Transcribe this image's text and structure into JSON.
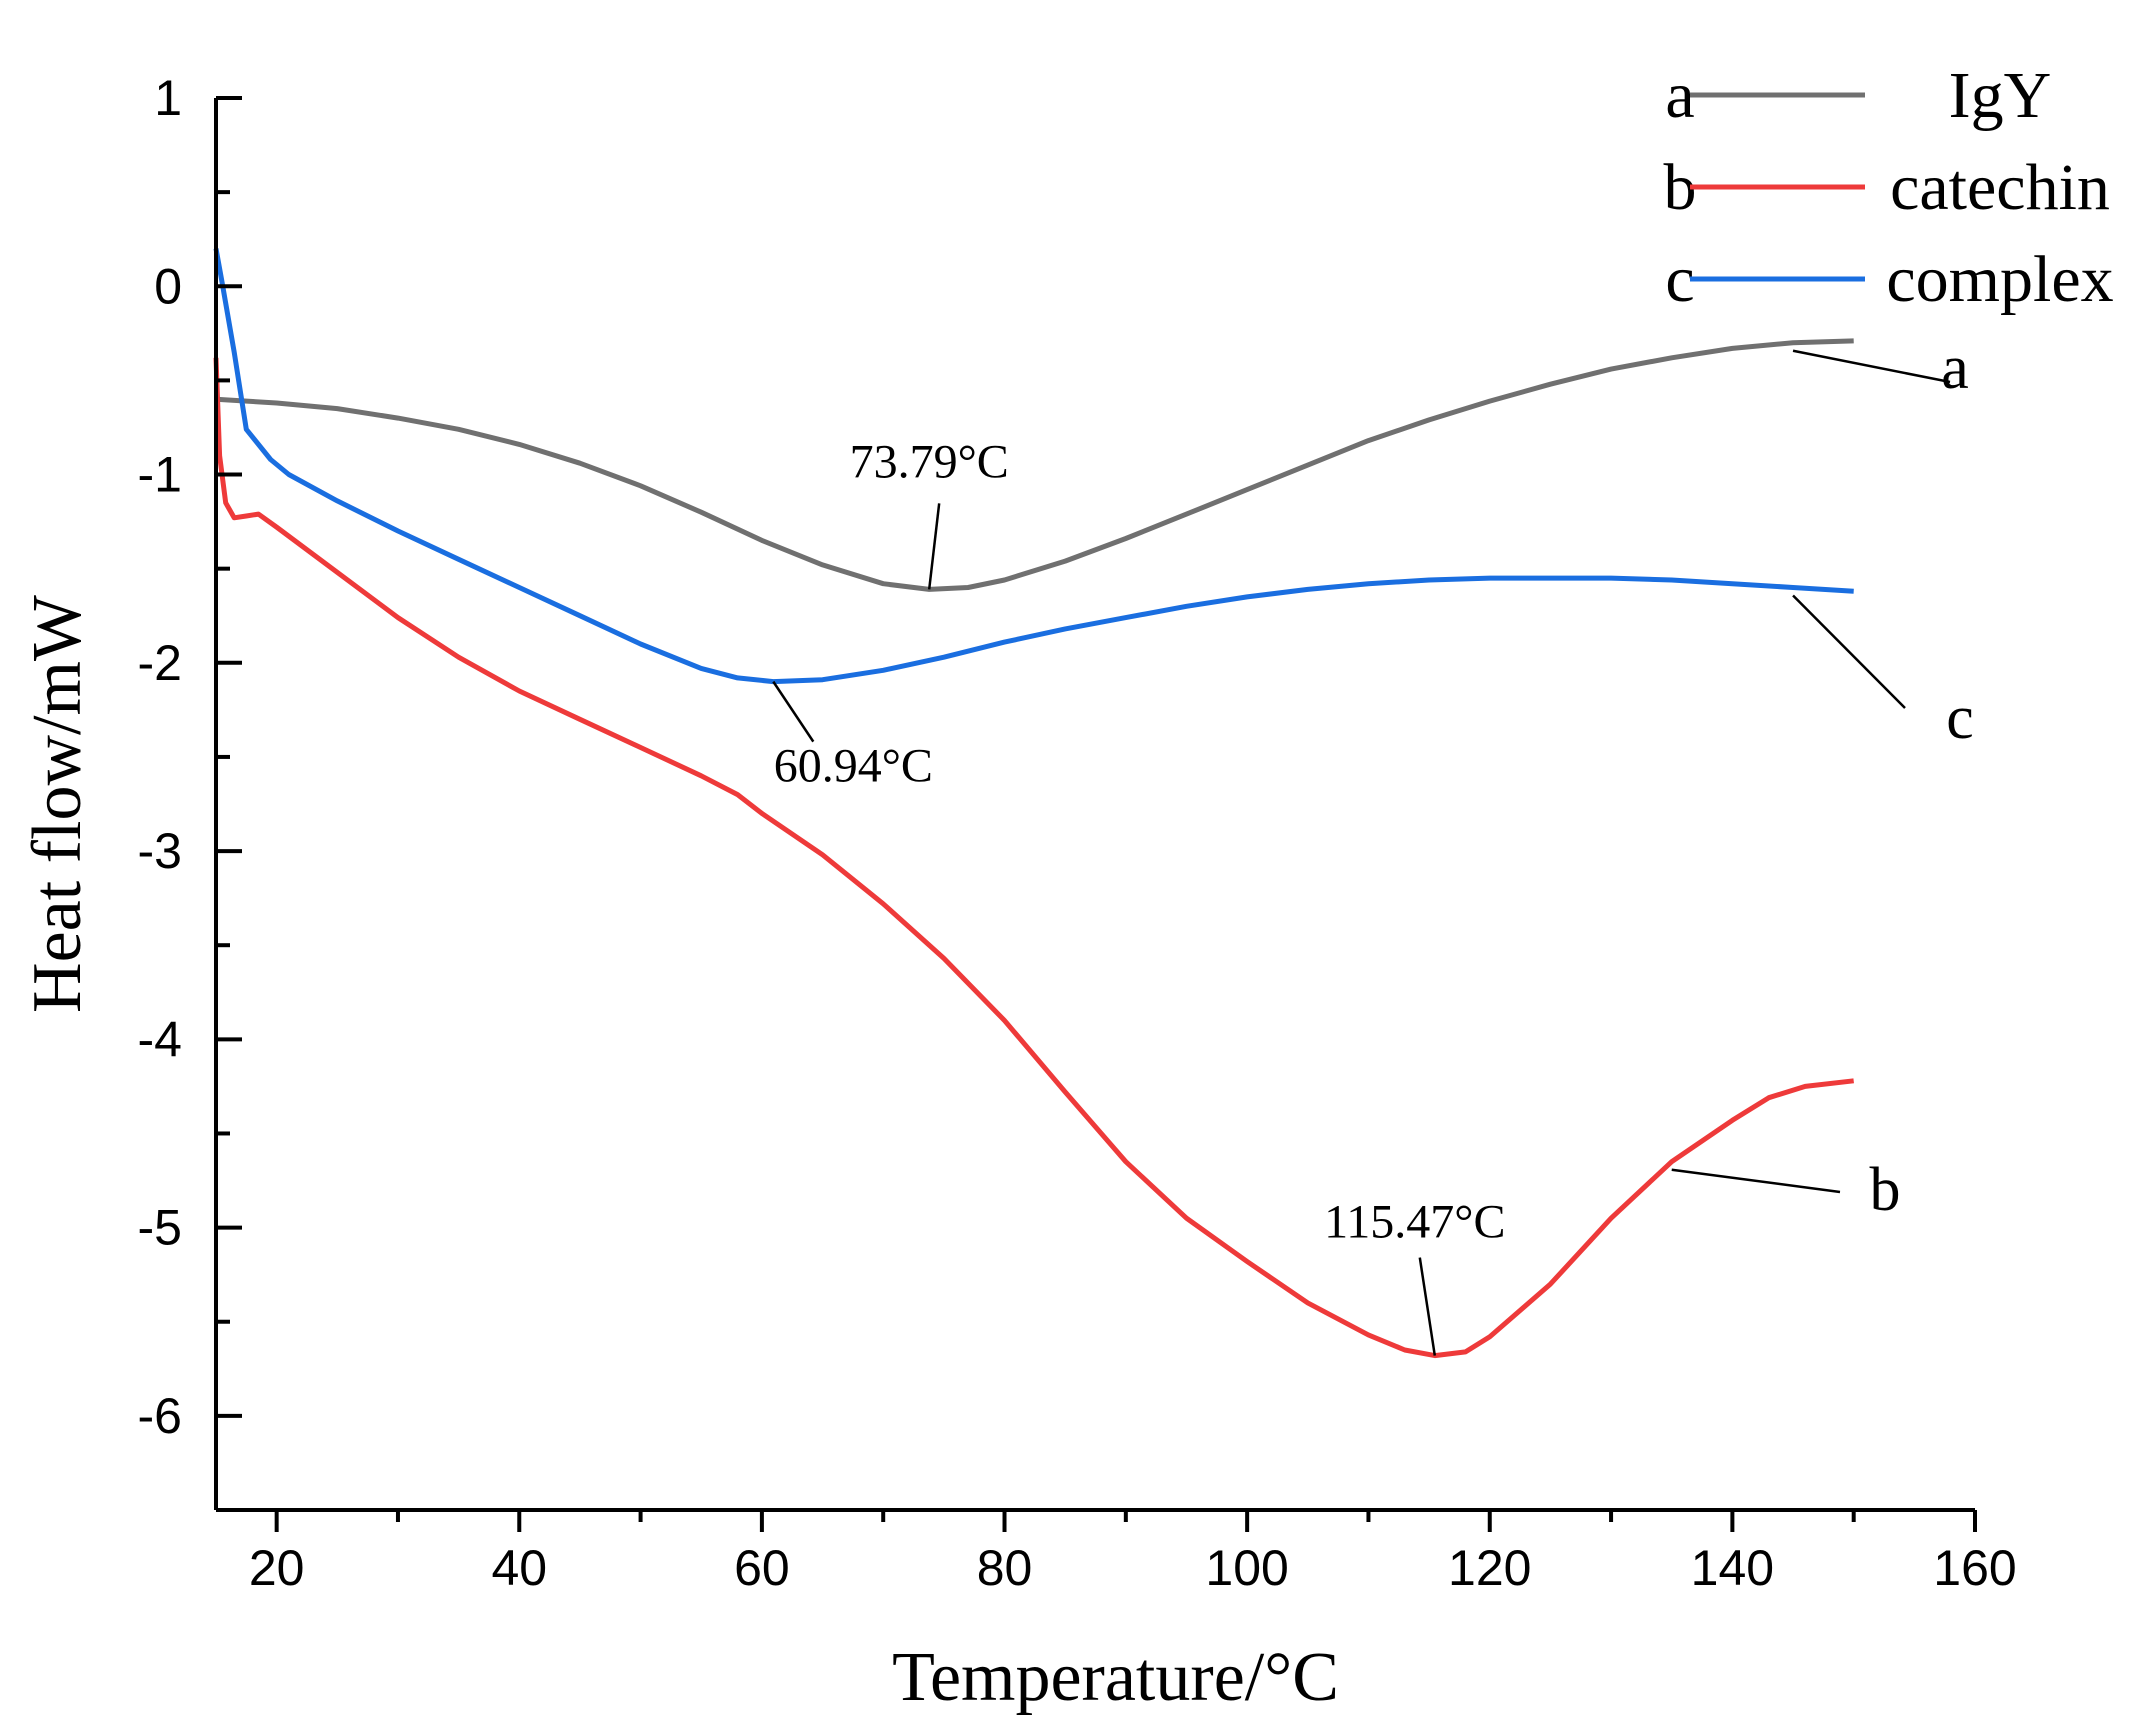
{
  "chart_data": {
    "type": "line",
    "title": "",
    "xlabel": "Temperature/°C",
    "ylabel": "Heat flow/mW",
    "xlim": [
      15,
      160
    ],
    "ylim": [
      -6.5,
      1
    ],
    "x_ticks": [
      20,
      40,
      60,
      80,
      100,
      120,
      140,
      160
    ],
    "y_ticks": [
      1,
      0,
      -1,
      -2,
      -3,
      -4,
      -5,
      -6
    ],
    "x_tick_labels": [
      "20",
      "40",
      "60",
      "80",
      "100",
      "120",
      "140",
      "160"
    ],
    "y_tick_labels": [
      "1",
      "0",
      "-1",
      "-2",
      "-3",
      "-4",
      "-5",
      "-6"
    ],
    "grid": false,
    "legend_position": "top-right",
    "series": [
      {
        "key": "a",
        "name": "IgY",
        "color": "#707070",
        "points": [
          [
            15,
            -0.6
          ],
          [
            20,
            -0.62
          ],
          [
            25,
            -0.65
          ],
          [
            30,
            -0.7
          ],
          [
            35,
            -0.76
          ],
          [
            40,
            -0.84
          ],
          [
            45,
            -0.94
          ],
          [
            50,
            -1.06
          ],
          [
            55,
            -1.2
          ],
          [
            60,
            -1.35
          ],
          [
            65,
            -1.48
          ],
          [
            70,
            -1.58
          ],
          [
            73.79,
            -1.61
          ],
          [
            77,
            -1.6
          ],
          [
            80,
            -1.56
          ],
          [
            85,
            -1.46
          ],
          [
            90,
            -1.34
          ],
          [
            95,
            -1.21
          ],
          [
            100,
            -1.08
          ],
          [
            105,
            -0.95
          ],
          [
            110,
            -0.82
          ],
          [
            115,
            -0.71
          ],
          [
            120,
            -0.61
          ],
          [
            125,
            -0.52
          ],
          [
            130,
            -0.44
          ],
          [
            135,
            -0.38
          ],
          [
            140,
            -0.33
          ],
          [
            145,
            -0.3
          ],
          [
            150,
            -0.29
          ]
        ]
      },
      {
        "key": "b",
        "name": "catechin",
        "color": "#ee3a3a",
        "points": [
          [
            15,
            -0.38
          ],
          [
            15.3,
            -0.9
          ],
          [
            15.8,
            -1.15
          ],
          [
            16.5,
            -1.23
          ],
          [
            17.5,
            -1.22
          ],
          [
            18.5,
            -1.21
          ],
          [
            20,
            -1.28
          ],
          [
            25,
            -1.52
          ],
          [
            30,
            -1.76
          ],
          [
            35,
            -1.97
          ],
          [
            40,
            -2.15
          ],
          [
            45,
            -2.3
          ],
          [
            50,
            -2.45
          ],
          [
            55,
            -2.6
          ],
          [
            58,
            -2.7
          ],
          [
            60,
            -2.8
          ],
          [
            65,
            -3.02
          ],
          [
            70,
            -3.28
          ],
          [
            75,
            -3.57
          ],
          [
            80,
            -3.9
          ],
          [
            85,
            -4.28
          ],
          [
            90,
            -4.65
          ],
          [
            95,
            -4.95
          ],
          [
            100,
            -5.18
          ],
          [
            105,
            -5.4
          ],
          [
            110,
            -5.57
          ],
          [
            113,
            -5.65
          ],
          [
            115.47,
            -5.68
          ],
          [
            118,
            -5.66
          ],
          [
            120,
            -5.58
          ],
          [
            125,
            -5.3
          ],
          [
            130,
            -4.95
          ],
          [
            135,
            -4.65
          ],
          [
            140,
            -4.43
          ],
          [
            143,
            -4.31
          ],
          [
            146,
            -4.25
          ],
          [
            150,
            -4.22
          ]
        ]
      },
      {
        "key": "c",
        "name": "complex",
        "color": "#1a6ee0",
        "points": [
          [
            15,
            0.2
          ],
          [
            15.5,
            0.02
          ],
          [
            16.5,
            -0.35
          ],
          [
            17.5,
            -0.76
          ],
          [
            19.5,
            -0.92
          ],
          [
            21,
            -1.0
          ],
          [
            25,
            -1.14
          ],
          [
            30,
            -1.3
          ],
          [
            35,
            -1.45
          ],
          [
            40,
            -1.6
          ],
          [
            45,
            -1.75
          ],
          [
            50,
            -1.9
          ],
          [
            55,
            -2.03
          ],
          [
            58,
            -2.08
          ],
          [
            60.94,
            -2.1
          ],
          [
            65,
            -2.09
          ],
          [
            70,
            -2.04
          ],
          [
            75,
            -1.97
          ],
          [
            80,
            -1.89
          ],
          [
            85,
            -1.82
          ],
          [
            90,
            -1.76
          ],
          [
            95,
            -1.7
          ],
          [
            100,
            -1.65
          ],
          [
            105,
            -1.61
          ],
          [
            110,
            -1.58
          ],
          [
            115,
            -1.56
          ],
          [
            120,
            -1.55
          ],
          [
            125,
            -1.55
          ],
          [
            130,
            -1.55
          ],
          [
            135,
            -1.56
          ],
          [
            140,
            -1.58
          ],
          [
            145,
            -1.6
          ],
          [
            150,
            -1.62
          ]
        ]
      }
    ],
    "annotations": [
      {
        "text": "73.79°C",
        "series": "a",
        "x": 73.79,
        "y": -1.61
      },
      {
        "text": "60.94°C",
        "series": "c",
        "x": 60.94,
        "y": -2.1
      },
      {
        "text": "115.47°C",
        "series": "b",
        "x": 115.47,
        "y": -5.68
      }
    ],
    "curve_labels": [
      {
        "text": "a",
        "series": "a"
      },
      {
        "text": "c",
        "series": "c"
      },
      {
        "text": "b",
        "series": "b"
      }
    ],
    "legend": [
      {
        "key": "a",
        "name": "IgY",
        "color": "#707070"
      },
      {
        "key": "b",
        "name": "catechin",
        "color": "#ee3a3a"
      },
      {
        "key": "c",
        "name": "complex",
        "color": "#1a6ee0"
      }
    ]
  }
}
